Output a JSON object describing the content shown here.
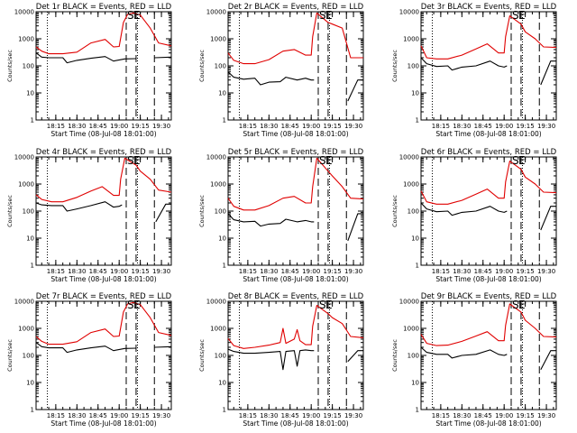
{
  "chart_data": [
    {
      "type": "line",
      "title": "Det 1r BLACK = Events, RED = LLD",
      "ylabel": "Counts/sec",
      "xlabel": "Start Time (08-Jul-08 18:01:00)",
      "x_ticks": [
        "18:15",
        "18:30",
        "18:45",
        "19:00",
        "19:15",
        "19:30"
      ],
      "y_ticks": [
        "1",
        "10",
        "100",
        "1000",
        "10000"
      ],
      "yscale": "log",
      "ylim": [
        1,
        10000
      ],
      "xlim": [
        "18:01",
        "19:37"
      ],
      "markers": [
        "S",
        "E"
      ],
      "grid": false,
      "series": [
        {
          "name": "BLACK",
          "color": "#000000",
          "x": [
            "18:01",
            "18:05",
            "18:10",
            "18:20",
            "18:23",
            "18:30",
            "18:40",
            "18:50",
            "18:56",
            "19:04",
            "19:12",
            "19:15",
            "19:23",
            "19:25",
            "19:37"
          ],
          "values": [
            300,
            210,
            200,
            200,
            130,
            160,
            190,
            220,
            150,
            180,
            185,
            null,
            null,
            200,
            210
          ]
        },
        {
          "name": "RED",
          "color": "#e00000",
          "x": [
            "18:01",
            "18:05",
            "18:10",
            "18:20",
            "18:30",
            "18:40",
            "18:50",
            "18:56",
            "19:00",
            "19:03",
            "19:06",
            "19:10",
            "19:15",
            "19:22",
            "19:28",
            "19:37"
          ],
          "values": [
            500,
            350,
            280,
            280,
            320,
            700,
            950,
            500,
            520,
            4000,
            8000,
            9000,
            7500,
            2500,
            700,
            550
          ]
        }
      ]
    },
    {
      "type": "line",
      "title": "Det 2r BLACK = Events, RED = LLD",
      "ylabel": "Counts/sec",
      "xlabel": "Start Time (08-Jul-08 18:01:00)",
      "x_ticks": [
        "18:15",
        "18:30",
        "18:45",
        "19:00",
        "19:15",
        "19:30"
      ],
      "y_ticks": [
        "1",
        "10",
        "100",
        "1000",
        "10000"
      ],
      "yscale": "log",
      "ylim": [
        1,
        10000
      ],
      "xlim": [
        "18:01",
        "19:37"
      ],
      "markers": [
        "S",
        "E"
      ],
      "grid": false,
      "series": [
        {
          "name": "BLACK",
          "color": "#000000",
          "x": [
            "18:01",
            "18:05",
            "18:12",
            "18:20",
            "18:24",
            "18:30",
            "18:38",
            "18:42",
            "18:50",
            "18:56",
            "19:00",
            "19:02",
            "19:12",
            "19:15",
            "19:20",
            "19:26",
            "19:33",
            "19:37"
          ],
          "values": [
            60,
            38,
            32,
            35,
            20,
            25,
            26,
            38,
            30,
            35,
            30,
            30,
            null,
            null,
            null,
            5,
            30,
            30
          ]
        },
        {
          "name": "RED",
          "color": "#e00000",
          "x": [
            "18:01",
            "18:05",
            "18:12",
            "18:20",
            "18:30",
            "18:40",
            "18:48",
            "18:56",
            "19:00",
            "19:01",
            "19:04",
            "19:12",
            "19:15",
            "19:22",
            "19:28",
            "19:37"
          ],
          "values": [
            300,
            160,
            120,
            120,
            170,
            350,
            400,
            250,
            250,
            1200,
            9000,
            4000,
            3500,
            2500,
            200,
            200
          ]
        }
      ]
    },
    {
      "type": "line",
      "title": "Det 3r BLACK = Events, RED = LLD",
      "ylabel": "Counts/sec",
      "xlabel": "Start Time (08-Jul-08 18:01:00)",
      "x_ticks": [
        "18:15",
        "18:30",
        "18:45",
        "19:00",
        "19:15",
        "19:30"
      ],
      "y_ticks": [
        "1",
        "10",
        "100",
        "1000",
        "10000"
      ],
      "yscale": "log",
      "ylim": [
        1,
        10000
      ],
      "xlim": [
        "18:01",
        "19:37"
      ],
      "markers": [
        "S",
        "E"
      ],
      "grid": false,
      "series": [
        {
          "name": "BLACK",
          "color": "#000000",
          "x": [
            "18:01",
            "18:05",
            "18:12",
            "18:20",
            "18:23",
            "18:30",
            "18:40",
            "18:50",
            "18:56",
            "19:00",
            "19:02",
            "19:12",
            "19:15",
            "19:20",
            "19:26",
            "19:33",
            "19:37"
          ],
          "values": [
            200,
            120,
            95,
            100,
            70,
            90,
            100,
            150,
            100,
            90,
            100,
            null,
            null,
            null,
            20,
            150,
            150
          ]
        },
        {
          "name": "RED",
          "color": "#e00000",
          "x": [
            "18:01",
            "18:05",
            "18:12",
            "18:20",
            "18:30",
            "18:40",
            "18:48",
            "18:56",
            "19:00",
            "19:01",
            "19:04",
            "19:12",
            "19:15",
            "19:22",
            "19:28",
            "19:37"
          ],
          "values": [
            550,
            200,
            180,
            180,
            250,
            420,
            650,
            300,
            300,
            1200,
            7000,
            3500,
            1800,
            1000,
            500,
            480
          ]
        }
      ]
    },
    {
      "type": "line",
      "title": "Det 4r BLACK = Events, RED = LLD",
      "ylabel": "Counts/sec",
      "xlabel": "Start Time (08-Jul-08 18:01:00)",
      "x_ticks": [
        "18:15",
        "18:30",
        "18:45",
        "19:00",
        "19:15",
        "19:30"
      ],
      "y_ticks": [
        "1",
        "10",
        "100",
        "1000",
        "10000"
      ],
      "yscale": "log",
      "ylim": [
        1,
        10000
      ],
      "xlim": [
        "18:01",
        "19:37"
      ],
      "markers": [
        "S",
        "E"
      ],
      "grid": false,
      "series": [
        {
          "name": "BLACK",
          "color": "#000000",
          "x": [
            "18:01",
            "18:05",
            "18:12",
            "18:20",
            "18:23",
            "18:30",
            "18:40",
            "18:50",
            "18:56",
            "19:00",
            "19:02",
            "19:12",
            "19:15",
            "19:22",
            "19:26",
            "19:33",
            "19:37"
          ],
          "values": [
            200,
            170,
            160,
            160,
            100,
            120,
            160,
            220,
            140,
            150,
            170,
            null,
            null,
            null,
            40,
            180,
            180
          ]
        },
        {
          "name": "RED",
          "color": "#e00000",
          "x": [
            "18:01",
            "18:05",
            "18:12",
            "18:20",
            "18:30",
            "18:40",
            "18:48",
            "18:56",
            "19:00",
            "19:01",
            "19:04",
            "19:12",
            "19:15",
            "19:22",
            "19:28",
            "19:37"
          ],
          "values": [
            400,
            270,
            220,
            220,
            320,
            550,
            800,
            380,
            380,
            1500,
            9000,
            5000,
            3000,
            1500,
            600,
            500
          ]
        }
      ]
    },
    {
      "type": "line",
      "title": "Det 5r BLACK = Events, RED = LLD",
      "ylabel": "Counts/sec",
      "xlabel": "Start Time (08-Jul-08 18:01:00)",
      "x_ticks": [
        "18:15",
        "18:30",
        "18:45",
        "19:00",
        "19:15",
        "19:30"
      ],
      "y_ticks": [
        "1",
        "10",
        "100",
        "1000",
        "10000"
      ],
      "yscale": "log",
      "ylim": [
        1,
        10000
      ],
      "xlim": [
        "18:01",
        "19:37"
      ],
      "markers": [
        "S",
        "E"
      ],
      "grid": false,
      "series": [
        {
          "name": "BLACK",
          "color": "#000000",
          "x": [
            "18:01",
            "18:05",
            "18:12",
            "18:20",
            "18:24",
            "18:30",
            "18:38",
            "18:42",
            "18:50",
            "18:56",
            "19:00",
            "19:02",
            "19:12",
            "19:15",
            "19:20",
            "19:26",
            "19:33",
            "19:37"
          ],
          "values": [
            80,
            48,
            40,
            42,
            28,
            33,
            35,
            50,
            40,
            45,
            40,
            40,
            null,
            null,
            null,
            8,
            80,
            80
          ]
        },
        {
          "name": "RED",
          "color": "#e00000",
          "x": [
            "18:01",
            "18:05",
            "18:12",
            "18:20",
            "18:30",
            "18:40",
            "18:48",
            "18:56",
            "19:00",
            "19:01",
            "19:04",
            "19:12",
            "19:15",
            "19:22",
            "19:28",
            "19:37"
          ],
          "values": [
            300,
            150,
            110,
            110,
            160,
            300,
            350,
            200,
            200,
            800,
            9000,
            3000,
            2000,
            800,
            300,
            280
          ]
        }
      ]
    },
    {
      "type": "line",
      "title": "Det 6r BLACK = Events, RED = LLD",
      "ylabel": "Counts/sec",
      "xlabel": "Start Time (08-Jul-08 18:01:00)",
      "x_ticks": [
        "18:15",
        "18:30",
        "18:45",
        "19:00",
        "19:15",
        "19:30"
      ],
      "y_ticks": [
        "1",
        "10",
        "100",
        "1000",
        "10000"
      ],
      "yscale": "log",
      "ylim": [
        1,
        10000
      ],
      "xlim": [
        "18:01",
        "19:37"
      ],
      "markers": [
        "S",
        "E"
      ],
      "grid": false,
      "series": [
        {
          "name": "BLACK",
          "color": "#000000",
          "x": [
            "18:01",
            "18:05",
            "18:12",
            "18:20",
            "18:23",
            "18:30",
            "18:40",
            "18:50",
            "18:56",
            "19:00",
            "19:02",
            "19:12",
            "19:15",
            "19:20",
            "19:26",
            "19:33",
            "19:37"
          ],
          "values": [
            200,
            120,
            95,
            100,
            70,
            90,
            100,
            150,
            100,
            90,
            100,
            null,
            null,
            null,
            20,
            150,
            150
          ]
        },
        {
          "name": "RED",
          "color": "#e00000",
          "x": [
            "18:01",
            "18:05",
            "18:12",
            "18:20",
            "18:30",
            "18:40",
            "18:48",
            "18:56",
            "19:00",
            "19:01",
            "19:04",
            "19:12",
            "19:15",
            "19:22",
            "19:28",
            "19:37"
          ],
          "values": [
            550,
            220,
            180,
            180,
            250,
            420,
            650,
            300,
            300,
            1200,
            7000,
            3500,
            1800,
            1000,
            500,
            480
          ]
        }
      ]
    },
    {
      "type": "line",
      "title": "Det 7r BLACK = Events, RED = LLD",
      "ylabel": "Counts/sec",
      "xlabel": "Start Time (08-Jul-08 18:01:00)",
      "x_ticks": [
        "18:15",
        "18:30",
        "18:45",
        "19:00",
        "19:15",
        "19:30"
      ],
      "y_ticks": [
        "1",
        "10",
        "100",
        "1000",
        "10000"
      ],
      "yscale": "log",
      "ylim": [
        1,
        10000
      ],
      "xlim": [
        "18:01",
        "19:37"
      ],
      "markers": [
        "S",
        "E"
      ],
      "grid": false,
      "series": [
        {
          "name": "BLACK",
          "color": "#000000",
          "x": [
            "18:01",
            "18:05",
            "18:10",
            "18:20",
            "18:23",
            "18:30",
            "18:40",
            "18:50",
            "18:56",
            "19:04",
            "19:12",
            "19:15",
            "19:23",
            "19:25",
            "19:37"
          ],
          "values": [
            300,
            210,
            190,
            190,
            130,
            160,
            190,
            220,
            150,
            180,
            185,
            null,
            null,
            200,
            210
          ]
        },
        {
          "name": "RED",
          "color": "#e00000",
          "x": [
            "18:01",
            "18:05",
            "18:10",
            "18:20",
            "18:30",
            "18:40",
            "18:50",
            "18:56",
            "19:00",
            "19:03",
            "19:06",
            "19:10",
            "19:15",
            "19:22",
            "19:28",
            "19:37"
          ],
          "values": [
            500,
            330,
            260,
            260,
            320,
            700,
            950,
            500,
            520,
            4000,
            8000,
            9000,
            7500,
            2500,
            700,
            550
          ]
        }
      ]
    },
    {
      "type": "line",
      "title": "Det 8r BLACK = Events, RED = LLD",
      "ylabel": "Counts/sec",
      "xlabel": "Start Time (08-Jul-08 18:01:00)",
      "x_ticks": [
        "18:15",
        "18:30",
        "18:45",
        "19:00",
        "19:15",
        "19:30"
      ],
      "y_ticks": [
        "1",
        "10",
        "100",
        "1000",
        "10000"
      ],
      "yscale": "log",
      "ylim": [
        1,
        10000
      ],
      "xlim": [
        "18:01",
        "19:37"
      ],
      "markers": [
        "S",
        "E"
      ],
      "grid": false,
      "series": [
        {
          "name": "BLACK",
          "color": "#000000",
          "x": [
            "18:01",
            "18:05",
            "18:12",
            "18:20",
            "18:30",
            "18:38",
            "18:40",
            "18:42",
            "18:48",
            "18:50",
            "18:52",
            "18:56",
            "19:00",
            "19:02",
            "19:12",
            "19:15",
            "19:22",
            "19:26",
            "19:33",
            "19:37"
          ],
          "values": [
            170,
            140,
            120,
            120,
            130,
            140,
            30,
            140,
            150,
            40,
            150,
            160,
            150,
            150,
            null,
            null,
            null,
            60,
            150,
            150
          ]
        },
        {
          "name": "RED",
          "color": "#e00000",
          "x": [
            "18:01",
            "18:05",
            "18:12",
            "18:20",
            "18:30",
            "18:38",
            "18:40",
            "18:42",
            "18:48",
            "18:50",
            "18:52",
            "18:56",
            "19:00",
            "19:01",
            "19:04",
            "19:12",
            "19:15",
            "19:22",
            "19:28",
            "19:37"
          ],
          "values": [
            420,
            230,
            180,
            200,
            240,
            300,
            1000,
            280,
            400,
            900,
            350,
            250,
            250,
            1200,
            7000,
            3500,
            2500,
            1500,
            500,
            450
          ]
        }
      ]
    },
    {
      "type": "line",
      "title": "Det 9r BLACK = Events, RED = LLD",
      "ylabel": "Counts/sec",
      "xlabel": "Start Time (08-Jul-08 18:01:00)",
      "x_ticks": [
        "18:15",
        "18:30",
        "18:45",
        "19:00",
        "19:15",
        "19:30"
      ],
      "y_ticks": [
        "1",
        "10",
        "100",
        "1000",
        "10000"
      ],
      "yscale": "log",
      "ylim": [
        1,
        10000
      ],
      "xlim": [
        "18:01",
        "19:37"
      ],
      "markers": [
        "S",
        "E"
      ],
      "grid": false,
      "series": [
        {
          "name": "BLACK",
          "color": "#000000",
          "x": [
            "18:01",
            "18:05",
            "18:12",
            "18:20",
            "18:23",
            "18:30",
            "18:40",
            "18:50",
            "18:56",
            "19:00",
            "19:02",
            "19:12",
            "19:15",
            "19:20",
            "19:26",
            "19:33",
            "19:37"
          ],
          "values": [
            200,
            130,
            110,
            110,
            80,
            100,
            110,
            160,
            110,
            100,
            110,
            null,
            null,
            null,
            30,
            150,
            150
          ]
        },
        {
          "name": "RED",
          "color": "#e00000",
          "x": [
            "18:01",
            "18:05",
            "18:12",
            "18:20",
            "18:30",
            "18:40",
            "18:48",
            "18:56",
            "19:00",
            "19:01",
            "19:04",
            "19:12",
            "19:15",
            "19:22",
            "19:28",
            "19:37"
          ],
          "values": [
            600,
            280,
            230,
            240,
            330,
            520,
            750,
            350,
            350,
            1300,
            8000,
            4000,
            2000,
            1000,
            500,
            480
          ]
        }
      ]
    }
  ]
}
